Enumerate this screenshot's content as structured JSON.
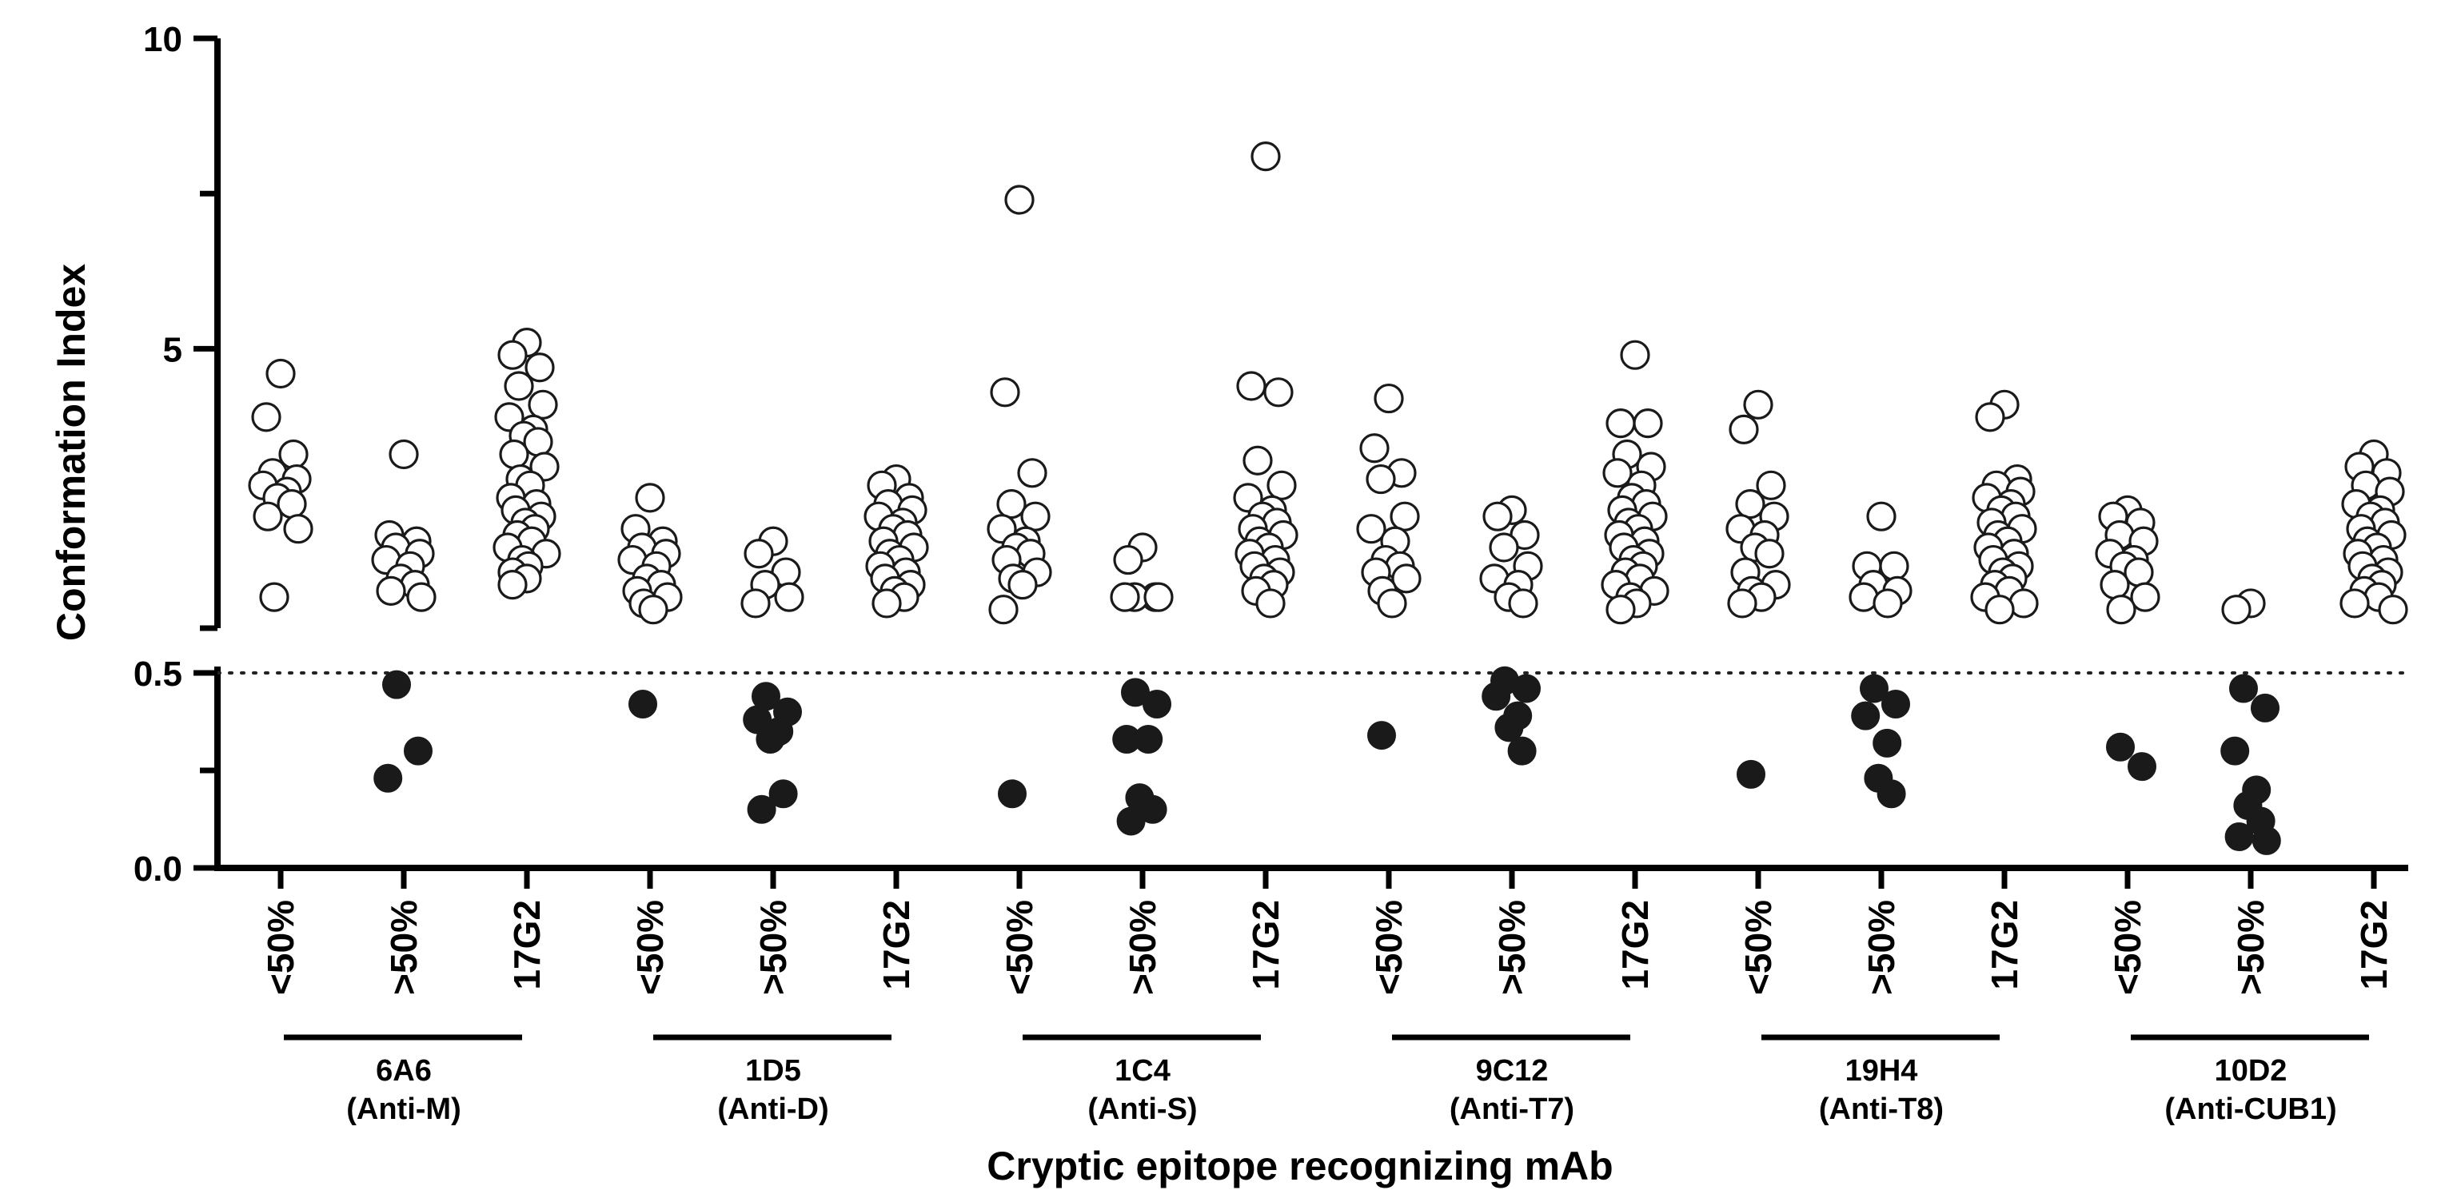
{
  "chart_data": {
    "type": "scatter",
    "title": "",
    "xlabel": "Cryptic epitope recognizing mAb",
    "ylabel": "Conformation Index",
    "y_axis": {
      "segmented": true,
      "lower_segment": {
        "range": [
          0.0,
          0.5
        ],
        "ticks": [
          "0.0",
          "0.5"
        ]
      },
      "upper_segment": {
        "range": [
          0.5,
          10
        ],
        "ticks": [
          "5",
          "10"
        ]
      },
      "reference_line": 0.5,
      "reference_line_style": "dotted"
    },
    "colors": {
      "open": "#ffffff",
      "solid": "#1a1a1a",
      "axis": "#000000"
    },
    "categories": [
      "<50%",
      ">50%",
      "17G2"
    ],
    "groups": [
      {
        "name": "6A6",
        "subtitle": "(Anti-M)",
        "columns": [
          {
            "label": "<50%",
            "open": [
              4.6,
              3.9,
              3.3,
              3.0,
              2.9,
              2.8,
              2.7,
              2.6,
              2.5,
              2.3,
              2.1,
              1.0
            ],
            "solid": []
          },
          {
            "label": ">50%",
            "open": [
              3.3,
              2.0,
              1.9,
              1.8,
              1.7,
              1.6,
              1.5,
              1.3,
              1.2,
              1.1,
              1.0
            ],
            "solid": [
              0.47,
              0.3,
              0.23
            ]
          },
          {
            "label": "17G2",
            "open": [
              5.1,
              4.9,
              4.7,
              4.4,
              4.1,
              3.9,
              3.7,
              3.6,
              3.5,
              3.3,
              3.1,
              2.9,
              2.8,
              2.6,
              2.5,
              2.4,
              2.3,
              2.2,
              2.1,
              2.0,
              1.9,
              1.8,
              1.7,
              1.6,
              1.5,
              1.4,
              1.3,
              1.2
            ],
            "solid": []
          }
        ]
      },
      {
        "name": "1D5",
        "subtitle": "(Anti-D)",
        "columns": [
          {
            "label": "<50%",
            "open": [
              2.6,
              2.1,
              1.9,
              1.8,
              1.7,
              1.6,
              1.5,
              1.3,
              1.2,
              1.1,
              1.0,
              0.9,
              0.8
            ],
            "solid": [
              0.42
            ]
          },
          {
            "label": ">50%",
            "open": [
              1.9,
              1.7,
              1.4,
              1.2,
              1.0,
              0.9
            ],
            "solid": [
              0.44,
              0.4,
              0.38,
              0.35,
              0.33,
              0.19,
              0.15
            ]
          },
          {
            "label": "17G2",
            "open": [
              2.9,
              2.8,
              2.6,
              2.5,
              2.4,
              2.3,
              2.2,
              2.1,
              2.0,
              1.9,
              1.8,
              1.7,
              1.6,
              1.5,
              1.4,
              1.3,
              1.2,
              1.1,
              1.0,
              0.9
            ],
            "solid": []
          }
        ]
      },
      {
        "name": "1C4",
        "subtitle": "(Anti-S)",
        "columns": [
          {
            "label": "<50%",
            "open": [
              7.4,
              4.3,
              3.0,
              2.5,
              2.3,
              2.1,
              1.9,
              1.8,
              1.7,
              1.6,
              1.4,
              1.3,
              1.2,
              0.8
            ],
            "solid": [
              0.19
            ]
          },
          {
            "label": ">50%",
            "open": [
              1.8,
              1.6,
              1.0,
              1.0,
              1.0,
              1.0
            ],
            "solid": [
              0.45,
              0.42,
              0.33,
              0.33,
              0.18,
              0.15,
              0.12
            ]
          },
          {
            "label": "17G2",
            "open": [
              8.1,
              4.4,
              4.3,
              3.2,
              2.8,
              2.6,
              2.4,
              2.3,
              2.2,
              2.1,
              2.0,
              1.9,
              1.8,
              1.7,
              1.6,
              1.5,
              1.4,
              1.3,
              1.2,
              1.1,
              0.9
            ],
            "solid": []
          }
        ]
      },
      {
        "name": "9C12",
        "subtitle": "(Anti-T7)",
        "columns": [
          {
            "label": "<50%",
            "open": [
              4.2,
              3.4,
              3.0,
              2.9,
              2.3,
              2.1,
              1.9,
              1.6,
              1.5,
              1.4,
              1.3,
              1.1,
              0.9
            ],
            "solid": [
              0.34
            ]
          },
          {
            "label": ">50%",
            "open": [
              2.4,
              2.3,
              2.0,
              1.8,
              1.5,
              1.3,
              1.2,
              1.0,
              0.9
            ],
            "solid": [
              0.48,
              0.46,
              0.44,
              0.39,
              0.36,
              0.3
            ]
          },
          {
            "label": "17G2",
            "open": [
              4.9,
              3.8,
              3.8,
              3.3,
              3.1,
              3.0,
              2.8,
              2.6,
              2.5,
              2.4,
              2.3,
              2.2,
              2.1,
              2.0,
              1.9,
              1.8,
              1.7,
              1.6,
              1.5,
              1.4,
              1.3,
              1.2,
              1.1,
              1.0,
              0.9,
              0.8
            ],
            "solid": []
          }
        ]
      },
      {
        "name": "19H4",
        "subtitle": "(Anti-T8)",
        "columns": [
          {
            "label": "<50%",
            "open": [
              4.1,
              3.7,
              2.8,
              2.5,
              2.3,
              2.1,
              2.0,
              1.8,
              1.7,
              1.4,
              1.2,
              1.1,
              1.0,
              0.9
            ],
            "solid": [
              0.24
            ]
          },
          {
            "label": ">50%",
            "open": [
              2.3,
              1.5,
              1.5,
              1.2,
              1.1,
              1.0,
              0.9
            ],
            "solid": [
              0.46,
              0.42,
              0.39,
              0.32,
              0.23,
              0.19
            ]
          },
          {
            "label": "17G2",
            "open": [
              4.1,
              3.9,
              2.9,
              2.8,
              2.7,
              2.6,
              2.5,
              2.4,
              2.3,
              2.2,
              2.1,
              2.0,
              1.9,
              1.8,
              1.7,
              1.6,
              1.5,
              1.4,
              1.3,
              1.2,
              1.1,
              1.0,
              0.9,
              0.8
            ],
            "solid": []
          }
        ]
      },
      {
        "name": "10D2",
        "subtitle": "(Anti-CUB1)",
        "columns": [
          {
            "label": "<50%",
            "open": [
              2.4,
              2.3,
              2.2,
              2.0,
              1.9,
              1.7,
              1.6,
              1.5,
              1.4,
              1.2,
              1.0,
              0.8
            ],
            "solid": [
              0.31,
              0.26
            ]
          },
          {
            "label": ">50%",
            "open": [
              0.9,
              0.8
            ],
            "solid": [
              0.46,
              0.41,
              0.3,
              0.2,
              0.16,
              0.12,
              0.08,
              0.07
            ]
          },
          {
            "label": "17G2",
            "open": [
              3.3,
              3.1,
              3.0,
              2.8,
              2.7,
              2.5,
              2.4,
              2.3,
              2.2,
              2.1,
              2.0,
              1.9,
              1.8,
              1.7,
              1.6,
              1.5,
              1.4,
              1.3,
              1.2,
              1.1,
              1.0,
              0.9,
              0.8
            ],
            "solid": []
          }
        ]
      }
    ]
  }
}
